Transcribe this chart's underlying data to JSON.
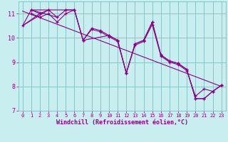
{
  "xlabel": "Windchill (Refroidissement éolien,°C)",
  "xlim": [
    -0.5,
    23.5
  ],
  "ylim": [
    7,
    11.5
  ],
  "yticks": [
    7,
    8,
    9,
    10,
    11
  ],
  "xticks": [
    0,
    1,
    2,
    3,
    4,
    5,
    6,
    7,
    8,
    9,
    10,
    11,
    12,
    13,
    14,
    15,
    16,
    17,
    18,
    19,
    20,
    21,
    22,
    23
  ],
  "bg_color": "#c8eef0",
  "line_color": "#8b008b",
  "grid_color": "#aadddd",
  "line1_x": [
    0,
    1,
    2,
    3,
    4,
    5,
    6,
    7,
    8,
    9,
    10,
    11,
    12,
    13,
    14,
    15,
    16,
    17,
    18,
    19,
    20,
    21,
    22,
    23
  ],
  "line1_y": [
    10.5,
    11.15,
    11.0,
    11.15,
    10.85,
    11.15,
    11.15,
    9.9,
    10.4,
    10.3,
    10.1,
    9.9,
    8.55,
    9.75,
    9.9,
    10.65,
    9.3,
    9.05,
    8.95,
    8.7,
    7.5,
    7.5,
    7.8,
    8.05
  ],
  "line2_x": [
    1,
    2,
    3,
    4,
    5,
    6,
    7,
    8,
    9,
    10,
    11,
    12,
    13,
    14,
    15,
    16,
    17,
    18,
    19,
    20,
    21,
    22,
    23
  ],
  "line2_y": [
    11.0,
    10.85,
    11.0,
    10.65,
    11.0,
    11.15,
    9.9,
    10.35,
    10.25,
    10.05,
    9.85,
    8.55,
    9.7,
    9.85,
    10.55,
    9.25,
    9.0,
    8.9,
    8.65,
    7.6,
    7.9,
    7.8,
    8.05
  ],
  "line3_x": [
    1,
    3,
    5,
    6,
    7,
    10,
    11,
    12,
    13,
    14,
    15,
    16,
    17,
    18,
    19,
    20,
    21,
    22,
    23
  ],
  "line3_y": [
    11.15,
    11.15,
    11.15,
    11.15,
    9.9,
    10.1,
    9.9,
    8.55,
    9.75,
    9.9,
    10.65,
    9.3,
    9.05,
    8.95,
    8.7,
    7.5,
    7.5,
    7.8,
    8.05
  ],
  "trend_x": [
    0,
    23
  ],
  "trend_y": [
    11.1,
    8.0
  ]
}
